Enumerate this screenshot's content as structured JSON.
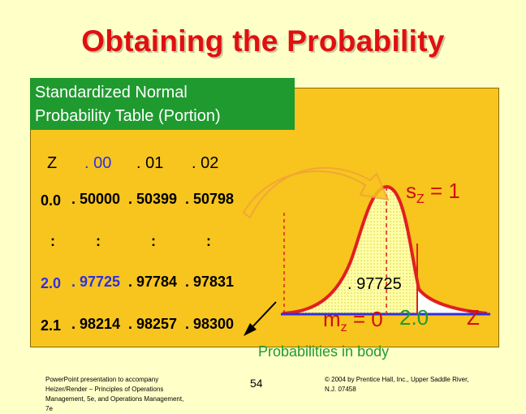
{
  "title": "Obtaining the Probability",
  "table_caption_line1": "Standardized Normal",
  "table_caption_line2": "Probability Table (Portion)",
  "table": {
    "headers": [
      "Z",
      ". 00",
      ". 01",
      ". 02"
    ],
    "rows": [
      {
        "z": "0.0",
        "c1": ". 50000",
        "c2": ". 50399",
        "c3": ". 50798"
      },
      {
        "z": ":",
        "c1": ":",
        "c2": ":",
        "c3": ":"
      },
      {
        "z": "2.0",
        "c1": ". 97725",
        "c2": ". 97784",
        "c3": ". 97831"
      },
      {
        "z": "2.1",
        "c1": ". 98214",
        "c2": ". 98257",
        "c3": ". 98300"
      }
    ]
  },
  "curve": {
    "sigma_text": "s",
    "sigma_sub": "Z",
    "sigma_rest": " = 1",
    "mu_text": "m",
    "mu_sub": "z",
    "mu_rest": " = 0",
    "z_value": "2.0",
    "z_label": "Z",
    "area_value": ". 97725"
  },
  "body_caption": "Probabilities in body",
  "footer_left": [
    "PowerPoint presentation to accompany",
    "Heizer/Render – Principles of Operations",
    "Management, 5e, and Operations Management,",
    "7e"
  ],
  "page_number": "54",
  "footer_right": [
    "© 2004 by Prentice Hall, Inc., Upper Saddle River,",
    "N.J. 07458"
  ],
  "colors": {
    "title": "#e01010",
    "panel": "#f7c51e",
    "caption_box": "#1f9a2f",
    "highlight": "#3030e0",
    "curve": "#e02020"
  }
}
